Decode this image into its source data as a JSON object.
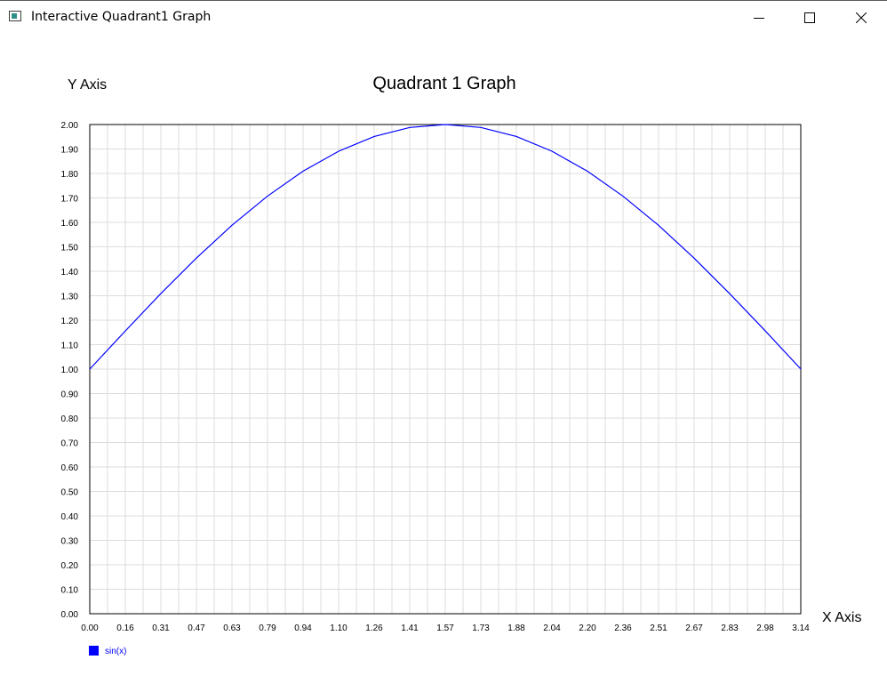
{
  "window": {
    "title": "Interactive Quadrant1 Graph",
    "controls": [
      "minimize-icon",
      "maximize-icon",
      "close-icon"
    ]
  },
  "chart_data": {
    "type": "line",
    "title": "Quadrant 1 Graph",
    "xlabel": "X Axis",
    "ylabel": "Y Axis",
    "xlim": [
      0,
      3.14159
    ],
    "ylim": [
      0,
      2
    ],
    "grid": true,
    "legend_position": "bottom-left",
    "x_ticks": [
      "0.00",
      "0.16",
      "0.31",
      "0.47",
      "0.63",
      "0.79",
      "0.94",
      "1.10",
      "1.26",
      "1.41",
      "1.57",
      "1.73",
      "1.88",
      "2.04",
      "2.20",
      "2.36",
      "2.51",
      "2.67",
      "2.83",
      "2.98",
      "3.14"
    ],
    "y_ticks": [
      "0.00",
      "0.10",
      "0.20",
      "0.30",
      "0.40",
      "0.50",
      "0.60",
      "0.70",
      "0.80",
      "0.90",
      "1.00",
      "1.10",
      "1.20",
      "1.30",
      "1.40",
      "1.50",
      "1.60",
      "1.70",
      "1.80",
      "1.90",
      "2.00"
    ],
    "series": [
      {
        "name": "sin(x)",
        "color": "#0000ff",
        "x": [
          0.0,
          0.157,
          0.314,
          0.471,
          0.628,
          0.785,
          0.942,
          1.1,
          1.257,
          1.414,
          1.571,
          1.728,
          1.885,
          2.042,
          2.199,
          2.356,
          2.513,
          2.67,
          2.827,
          2.985,
          3.142
        ],
        "y": [
          1.0,
          1.156,
          1.309,
          1.454,
          1.588,
          1.707,
          1.809,
          1.891,
          1.951,
          1.988,
          2.0,
          1.988,
          1.951,
          1.891,
          1.809,
          1.707,
          1.588,
          1.454,
          1.309,
          1.156,
          1.0
        ]
      }
    ]
  }
}
